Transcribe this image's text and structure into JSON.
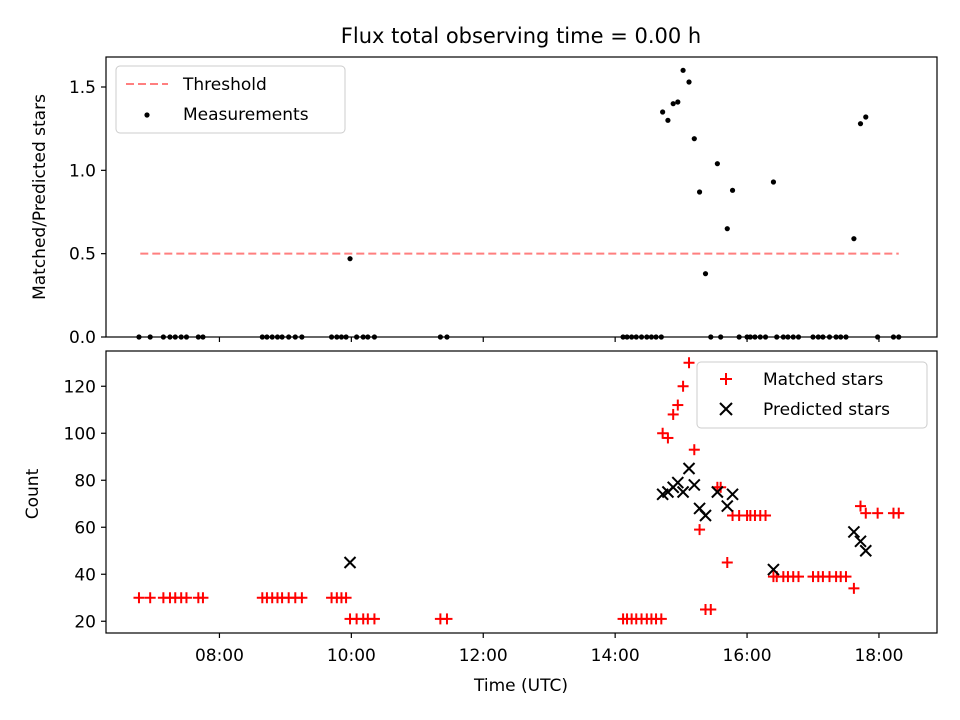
{
  "chart_data": [
    {
      "type": "scatter",
      "title": "Flux total observing time = 0.00 h",
      "xlabel": "",
      "ylabel": "Matched/Predicted stars",
      "xlim": [
        6.28,
        18.88
      ],
      "ylim": [
        0.0,
        1.68
      ],
      "yticks": [
        0.0,
        0.5,
        1.0,
        1.5
      ],
      "yticklabels": [
        "0.0",
        "0.5",
        "1.0",
        "1.5"
      ],
      "grid": false,
      "legend_position": "upper-left",
      "series": [
        {
          "name": "Threshold",
          "kind": "dashed-line",
          "color": "#ff7f7f",
          "x": [
            6.8,
            18.3
          ],
          "y": [
            0.5,
            0.5
          ]
        },
        {
          "name": "Measurements",
          "kind": "points",
          "color": "#000000",
          "points": [
            [
              6.78,
              0
            ],
            [
              6.95,
              0
            ],
            [
              7.15,
              0
            ],
            [
              7.25,
              0
            ],
            [
              7.33,
              0
            ],
            [
              7.42,
              0
            ],
            [
              7.5,
              0
            ],
            [
              7.68,
              0
            ],
            [
              7.75,
              0
            ],
            [
              8.65,
              0
            ],
            [
              8.72,
              0
            ],
            [
              8.8,
              0
            ],
            [
              8.88,
              0
            ],
            [
              8.95,
              0
            ],
            [
              9.05,
              0
            ],
            [
              9.15,
              0
            ],
            [
              9.25,
              0
            ],
            [
              9.7,
              0
            ],
            [
              9.78,
              0
            ],
            [
              9.85,
              0
            ],
            [
              9.92,
              0
            ],
            [
              9.98,
              0.47
            ],
            [
              10.08,
              0
            ],
            [
              10.18,
              0
            ],
            [
              10.25,
              0
            ],
            [
              10.35,
              0
            ],
            [
              11.35,
              0
            ],
            [
              11.45,
              0
            ],
            [
              14.12,
              0
            ],
            [
              14.18,
              0
            ],
            [
              14.25,
              0
            ],
            [
              14.32,
              0
            ],
            [
              14.4,
              0
            ],
            [
              14.48,
              0
            ],
            [
              14.55,
              0
            ],
            [
              14.62,
              0
            ],
            [
              14.7,
              0
            ],
            [
              14.72,
              1.35
            ],
            [
              14.8,
              1.3
            ],
            [
              14.88,
              1.4
            ],
            [
              14.95,
              1.41
            ],
            [
              15.03,
              1.6
            ],
            [
              15.12,
              1.53
            ],
            [
              15.2,
              1.19
            ],
            [
              15.28,
              0.87
            ],
            [
              15.37,
              0.38
            ],
            [
              15.45,
              0
            ],
            [
              15.55,
              1.04
            ],
            [
              15.6,
              0
            ],
            [
              15.7,
              0.65
            ],
            [
              15.78,
              0.88
            ],
            [
              15.88,
              0
            ],
            [
              16.0,
              0
            ],
            [
              16.05,
              0
            ],
            [
              16.12,
              0
            ],
            [
              16.2,
              0
            ],
            [
              16.28,
              0
            ],
            [
              16.4,
              0.93
            ],
            [
              16.45,
              0
            ],
            [
              16.55,
              0
            ],
            [
              16.62,
              0
            ],
            [
              16.7,
              0
            ],
            [
              16.78,
              0
            ],
            [
              17.0,
              0
            ],
            [
              17.08,
              0
            ],
            [
              17.15,
              0
            ],
            [
              17.25,
              0
            ],
            [
              17.35,
              0
            ],
            [
              17.42,
              0
            ],
            [
              17.5,
              0
            ],
            [
              17.62,
              0.59
            ],
            [
              17.72,
              1.28
            ],
            [
              17.8,
              1.32
            ],
            [
              17.98,
              0
            ],
            [
              18.22,
              0
            ],
            [
              18.3,
              0
            ]
          ]
        }
      ]
    },
    {
      "type": "scatter",
      "title": "",
      "xlabel": "Time (UTC)",
      "ylabel": "Count",
      "xlim": [
        6.28,
        18.88
      ],
      "ylim": [
        15.0,
        135.0
      ],
      "xticks": [
        8,
        10,
        12,
        14,
        16,
        18
      ],
      "xticklabels": [
        "08:00",
        "10:00",
        "12:00",
        "14:00",
        "16:00",
        "18:00"
      ],
      "yticks": [
        20,
        40,
        60,
        80,
        100,
        120
      ],
      "yticklabels": [
        "20",
        "40",
        "60",
        "80",
        "100",
        "120"
      ],
      "grid": false,
      "legend_position": "upper-right",
      "series": [
        {
          "name": "Matched stars",
          "kind": "plus",
          "color": "#ff0000",
          "points": [
            [
              6.78,
              30
            ],
            [
              6.95,
              30
            ],
            [
              7.15,
              30
            ],
            [
              7.25,
              30
            ],
            [
              7.33,
              30
            ],
            [
              7.42,
              30
            ],
            [
              7.5,
              30
            ],
            [
              7.68,
              30
            ],
            [
              7.75,
              30
            ],
            [
              8.65,
              30
            ],
            [
              8.72,
              30
            ],
            [
              8.8,
              30
            ],
            [
              8.88,
              30
            ],
            [
              8.95,
              30
            ],
            [
              9.05,
              30
            ],
            [
              9.15,
              30
            ],
            [
              9.25,
              30
            ],
            [
              9.7,
              30
            ],
            [
              9.78,
              30
            ],
            [
              9.85,
              30
            ],
            [
              9.92,
              30
            ],
            [
              9.98,
              21
            ],
            [
              10.08,
              21
            ],
            [
              10.18,
              21
            ],
            [
              10.25,
              21
            ],
            [
              10.35,
              21
            ],
            [
              11.35,
              21
            ],
            [
              11.45,
              21
            ],
            [
              14.12,
              21
            ],
            [
              14.18,
              21
            ],
            [
              14.25,
              21
            ],
            [
              14.32,
              21
            ],
            [
              14.4,
              21
            ],
            [
              14.48,
              21
            ],
            [
              14.55,
              21
            ],
            [
              14.62,
              21
            ],
            [
              14.7,
              21
            ],
            [
              14.72,
              100
            ],
            [
              14.8,
              98
            ],
            [
              14.88,
              108
            ],
            [
              14.95,
              112
            ],
            [
              15.03,
              120
            ],
            [
              15.12,
              130
            ],
            [
              15.2,
              93
            ],
            [
              15.28,
              59
            ],
            [
              15.37,
              25
            ],
            [
              15.45,
              25
            ],
            [
              15.55,
              77
            ],
            [
              15.6,
              77
            ],
            [
              15.7,
              45
            ],
            [
              15.78,
              65
            ],
            [
              15.88,
              65
            ],
            [
              16.0,
              65
            ],
            [
              16.05,
              65
            ],
            [
              16.12,
              65
            ],
            [
              16.2,
              65
            ],
            [
              16.28,
              65
            ],
            [
              16.4,
              39
            ],
            [
              16.45,
              39
            ],
            [
              16.55,
              39
            ],
            [
              16.62,
              39
            ],
            [
              16.7,
              39
            ],
            [
              16.78,
              39
            ],
            [
              17.0,
              39
            ],
            [
              17.08,
              39
            ],
            [
              17.15,
              39
            ],
            [
              17.25,
              39
            ],
            [
              17.35,
              39
            ],
            [
              17.42,
              39
            ],
            [
              17.5,
              39
            ],
            [
              17.62,
              34
            ],
            [
              17.72,
              69
            ],
            [
              17.8,
              66
            ],
            [
              17.98,
              66
            ],
            [
              18.22,
              66
            ],
            [
              18.3,
              66
            ]
          ]
        },
        {
          "name": "Predicted stars",
          "kind": "cross",
          "color": "#000000",
          "points": [
            [
              9.98,
              45
            ],
            [
              14.72,
              74
            ],
            [
              14.8,
              75
            ],
            [
              14.88,
              77
            ],
            [
              14.95,
              79
            ],
            [
              15.03,
              75
            ],
            [
              15.12,
              85
            ],
            [
              15.2,
              78
            ],
            [
              15.28,
              68
            ],
            [
              15.37,
              65
            ],
            [
              15.55,
              75
            ],
            [
              15.7,
              69
            ],
            [
              15.78,
              74
            ],
            [
              16.4,
              42
            ],
            [
              17.62,
              58
            ],
            [
              17.72,
              54
            ],
            [
              17.8,
              50
            ]
          ]
        }
      ]
    }
  ]
}
